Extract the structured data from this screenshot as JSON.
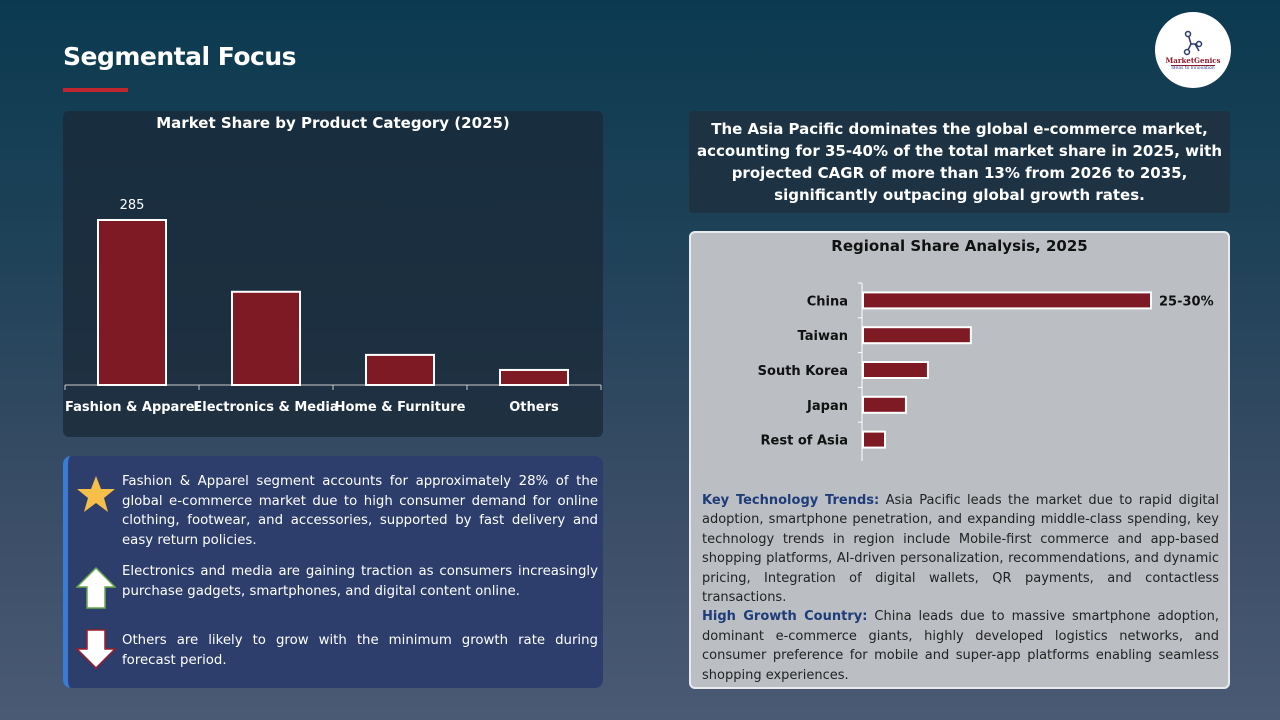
{
  "page": {
    "title": "Segmental Focus"
  },
  "logo": {
    "name": "MarketGenics",
    "tagline": "Ideas to Innovation"
  },
  "chart_data": [
    {
      "type": "bar",
      "title": "Market Share by Product Category (2025)",
      "categories": [
        "Fashion & Apparel",
        "Electronics & Media",
        "Home & Furniture",
        "Others"
      ],
      "values": [
        285,
        161,
        52,
        26
      ],
      "data_labels": [
        "285",
        "",
        "",
        ""
      ],
      "ylim": [
        0,
        300
      ],
      "grid": false,
      "bar_color": "#7e1a24"
    },
    {
      "type": "bar",
      "orientation": "horizontal",
      "title": "Regional Share Analysis, 2025",
      "categories": [
        "China",
        "Taiwan",
        "South Korea",
        "Japan",
        "Rest of Asia"
      ],
      "values": [
        27.5,
        10.3,
        6.2,
        4.1,
        2.1
      ],
      "data_labels": [
        "25-30%",
        "",
        "",
        "",
        ""
      ],
      "grid": false,
      "bar_color": "#7e1a24"
    }
  ],
  "insights": [
    {
      "icon": "star-icon",
      "text": "Fashion & Apparel segment accounts for approximately 28% of the global e-commerce market due to high consumer demand for online clothing, footwear, and accessories, supported by fast delivery and easy return policies."
    },
    {
      "icon": "arrow-up-icon",
      "text": "Electronics and media are gaining traction as consumers increasingly purchase gadgets, smartphones, and digital content online."
    },
    {
      "icon": "arrow-down-icon",
      "text": "Others are likely to grow with the minimum growth rate during forecast period."
    }
  ],
  "summary": "The Asia Pacific dominates the global e-commerce market, accounting for 35-40% of the total market share in 2025, with projected CAGR of more than 13% from 2026 to 2035, significantly outpacing global growth rates.",
  "trends": {
    "tech_label": "Key Technology Trends:",
    "tech_text": " Asia Pacific leads the market due to rapid digital adoption, smartphone penetration, and expanding middle-class spending, key technology trends in region include Mobile-first commerce and app-based shopping platforms, AI-driven personalization, recommendations, and dynamic pricing, Integration of digital wallets, QR payments, and contactless transactions.",
    "growth_label": "High Growth Country:",
    "growth_text": " China leads due to massive smartphone adoption, dominant e-commerce giants, highly developed logistics networks, and consumer preference for mobile and super-app platforms enabling seamless shopping experiences."
  }
}
